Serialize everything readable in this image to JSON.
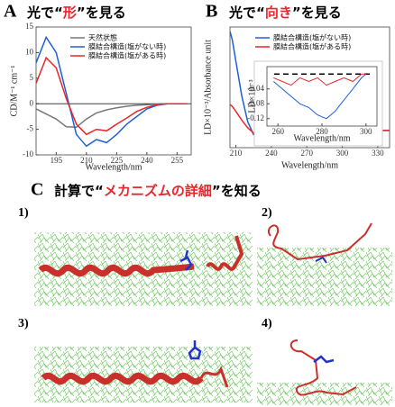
{
  "panel_a": {
    "letter": "A",
    "before": "光で“",
    "highlight": "形",
    "after": "”を見る"
  },
  "panel_b": {
    "letter": "B",
    "before": "光で“",
    "highlight": "向き",
    "after": "”を見る"
  },
  "chart_data": [
    {
      "type": "line",
      "xlabel": "Wavelength/nm",
      "ylabel": "CD/M⁻¹ cm⁻¹",
      "xlim": [
        185,
        262
      ],
      "ylim": [
        -10,
        15
      ],
      "xticks": [
        195,
        210,
        225,
        240,
        255
      ],
      "yticks": [
        -10,
        -5,
        0,
        5,
        10,
        15
      ],
      "legend": "upper right",
      "frame": true,
      "x": [
        185,
        190,
        195,
        200,
        205,
        210,
        215,
        220,
        225,
        230,
        235,
        240,
        245,
        250,
        255,
        260
      ],
      "series": [
        {
          "name": "天然状態",
          "color": "#777777",
          "values": [
            -1,
            -2,
            -3,
            -4.5,
            -4.6,
            -3,
            -1.8,
            -1.2,
            -0.8,
            -0.5,
            -0.3,
            -0.2,
            -0.1,
            0,
            0,
            0
          ]
        },
        {
          "name": "膜結合構造(塩がない時)",
          "color": "#1f5fd6",
          "values": [
            8,
            13,
            10,
            2,
            -6,
            -8.3,
            -7,
            -7.6,
            -6,
            -4,
            -2.5,
            -1,
            -0.3,
            0,
            0,
            0
          ]
        },
        {
          "name": "膜結合構造(塩がある時)",
          "color": "#e8262b",
          "values": [
            4,
            9,
            7,
            1,
            -4,
            -6,
            -5,
            -5.3,
            -4,
            -2.8,
            -1.5,
            -0.7,
            -0.2,
            0,
            0,
            0
          ]
        }
      ]
    },
    {
      "type": "line",
      "xlabel": "Wavelength/nm",
      "ylabel": "LD×10⁻³/Absorbance unit",
      "xlim": [
        205,
        340
      ],
      "ylim": [
        -2,
        12
      ],
      "xticks": [
        210,
        240,
        270,
        300,
        330
      ],
      "yticks": [],
      "legend": "upper right",
      "frame": true,
      "x": [
        205,
        207,
        210,
        215,
        220,
        225,
        230,
        240,
        250,
        270,
        300,
        330,
        340
      ],
      "series": [
        {
          "name": "膜結合構造(塩がない時)",
          "color": "#1f5fd6",
          "values": [
            11.5,
            10.5,
            8,
            4,
            1,
            -0.5,
            -0.4,
            -0.1,
            0,
            0,
            0,
            0,
            0
          ]
        },
        {
          "name": "膜結合構造(塩がある時)",
          "color": "#e8262b",
          "values": [
            3,
            2.8,
            2.2,
            1.2,
            0.3,
            -0.3,
            -0.3,
            -0.1,
            0,
            0,
            0,
            0,
            0
          ]
        }
      ]
    },
    {
      "type": "line",
      "xlabel": "Wavelength/nm",
      "ylabel": "LD×10⁻³",
      "xlim": [
        255,
        305
      ],
      "ylim": [
        -0.14,
        0.02
      ],
      "xticks": [
        260,
        280,
        300
      ],
      "yticks": [
        -0.04,
        -0.08,
        -0.12
      ],
      "frame": true,
      "reference_line": 0,
      "x": [
        258,
        262,
        266,
        270,
        274,
        278,
        282,
        286,
        290,
        294,
        298,
        300
      ],
      "series": [
        {
          "color": "#1f5fd6",
          "values": [
            -0.02,
            -0.04,
            -0.06,
            -0.08,
            -0.09,
            -0.11,
            -0.12,
            -0.1,
            -0.07,
            -0.04,
            -0.01,
            0
          ]
        },
        {
          "color": "#e8262b",
          "values": [
            -0.01,
            -0.02,
            -0.03,
            -0.01,
            -0.02,
            -0.01,
            -0.03,
            -0.02,
            -0.01,
            -0.02,
            0,
            0
          ]
        }
      ]
    }
  ],
  "panel_c": {
    "letter": "C",
    "before": "計算で“",
    "highlight": "メカニズムの詳細",
    "after": "”を知る",
    "images": [
      {
        "label": "1)"
      },
      {
        "label": "2)"
      },
      {
        "label": "3)"
      },
      {
        "label": "4)"
      }
    ]
  }
}
